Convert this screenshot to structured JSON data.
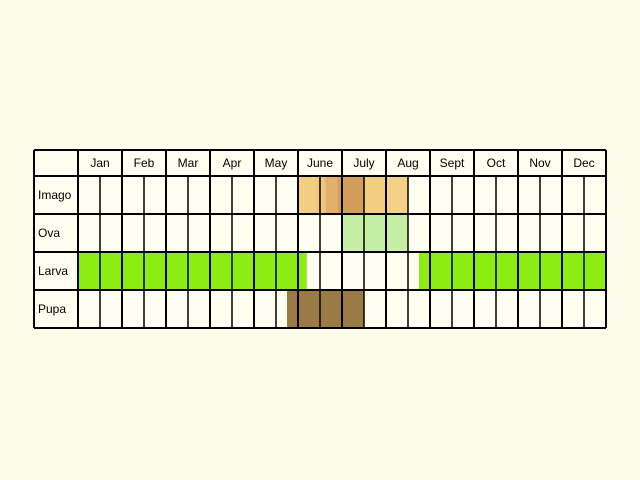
{
  "chart_data": {
    "type": "table",
    "months": [
      "Jan",
      "Feb",
      "Mar",
      "Apr",
      "May",
      "June",
      "July",
      "Aug",
      "Sept",
      "Oct",
      "Nov",
      "Dec"
    ],
    "stages": [
      {
        "name": "Imago",
        "bands": [
          {
            "from": 6.0,
            "to": 6.42,
            "color": "#f3ce82"
          },
          {
            "from": 6.42,
            "to": 6.62,
            "color": "#f2c57a"
          },
          {
            "from": 6.62,
            "to": 6.9,
            "color": "#e2b06a"
          },
          {
            "from": 6.9,
            "to": 7.5,
            "color": "#d39e58"
          },
          {
            "from": 7.5,
            "to": 8.0,
            "color": "#f3ce82"
          },
          {
            "from": 8.0,
            "to": 8.5,
            "color": "#f5d188"
          }
        ]
      },
      {
        "name": "Ova",
        "bands": [
          {
            "from": 7.0,
            "to": 8.5,
            "color": "#c6efa6"
          }
        ]
      },
      {
        "name": "Larva",
        "bands": [
          {
            "from": 1.0,
            "to": 6.2,
            "color": "#8ced12"
          },
          {
            "from": 8.75,
            "to": 13.0,
            "color": "#8ced12"
          }
        ]
      },
      {
        "name": "Pupa",
        "bands": [
          {
            "from": 5.75,
            "to": 7.5,
            "color": "#9a7b45"
          }
        ]
      }
    ],
    "subdivisions_per_month": 2
  }
}
